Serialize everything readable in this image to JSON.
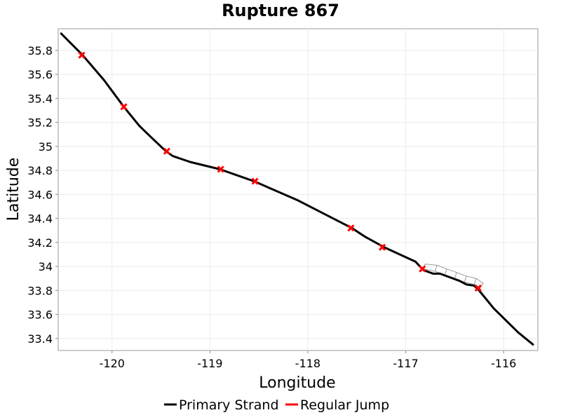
{
  "chart_data": {
    "type": "line",
    "title": "Rupture 867",
    "xlabel": "Longitude",
    "ylabel": "Latitude",
    "xlim": [
      -120.55,
      -115.65
    ],
    "ylim": [
      33.3,
      35.98
    ],
    "xticks": [
      -120,
      -119,
      -118,
      -117,
      -116
    ],
    "yticks": [
      33.4,
      33.6,
      33.8,
      34,
      34.2,
      34.4,
      34.6,
      34.8,
      35,
      35.2,
      35.4,
      35.6,
      35.8
    ],
    "xtick_labels": [
      "-120",
      "-119",
      "-118",
      "-117",
      "-116"
    ],
    "ytick_labels": [
      "33.4",
      "33.6",
      "33.8",
      "34",
      "34.2",
      "34.4",
      "34.6",
      "34.8",
      "35",
      "35.2",
      "35.4",
      "35.6",
      "35.8"
    ],
    "grid": true,
    "legend_position": "bottom",
    "series": [
      {
        "name": "Primary Strand",
        "color": "#000000",
        "x": [
          -120.52,
          -120.3,
          -120.08,
          -119.88,
          -119.72,
          -119.58,
          -119.45,
          -119.38,
          -119.2,
          -118.9,
          -118.55,
          -118.1,
          -117.55,
          -117.42,
          -117.22,
          -116.9,
          -116.82,
          -116.72,
          -116.65,
          -116.55,
          -116.45,
          -116.38,
          -116.3,
          -116.25,
          -116.1,
          -115.85,
          -115.7
        ],
        "y": [
          35.94,
          35.76,
          35.55,
          35.33,
          35.17,
          35.06,
          34.96,
          34.92,
          34.87,
          34.81,
          34.71,
          34.55,
          34.32,
          34.25,
          34.16,
          34.04,
          33.97,
          33.94,
          33.94,
          33.91,
          33.88,
          33.85,
          33.84,
          33.8,
          33.65,
          33.45,
          33.35
        ]
      },
      {
        "name": "Regular Jump",
        "color": "#ff0000",
        "points": [
          {
            "x": -120.31,
            "y": 35.76
          },
          {
            "x": -119.88,
            "y": 35.33
          },
          {
            "x": -119.44,
            "y": 34.96
          },
          {
            "x": -118.89,
            "y": 34.81
          },
          {
            "x": -118.54,
            "y": 34.71
          },
          {
            "x": -117.56,
            "y": 34.32
          },
          {
            "x": -117.24,
            "y": 34.16
          },
          {
            "x": -116.83,
            "y": 33.98
          },
          {
            "x": -116.26,
            "y": 33.82
          }
        ]
      }
    ],
    "surface_outline": {
      "color": "#999999",
      "upper": [
        {
          "x": -116.8,
          "y": 34.02
        },
        {
          "x": -116.68,
          "y": 34.01
        },
        {
          "x": -116.58,
          "y": 33.98
        },
        {
          "x": -116.48,
          "y": 33.95
        },
        {
          "x": -116.38,
          "y": 33.92
        },
        {
          "x": -116.28,
          "y": 33.9
        },
        {
          "x": -116.21,
          "y": 33.86
        }
      ],
      "lower": [
        {
          "x": -116.82,
          "y": 33.98
        },
        {
          "x": -116.7,
          "y": 33.96
        },
        {
          "x": -116.6,
          "y": 33.93
        },
        {
          "x": -116.5,
          "y": 33.9
        },
        {
          "x": -116.4,
          "y": 33.87
        },
        {
          "x": -116.3,
          "y": 33.85
        },
        {
          "x": -116.24,
          "y": 33.82
        }
      ]
    }
  }
}
